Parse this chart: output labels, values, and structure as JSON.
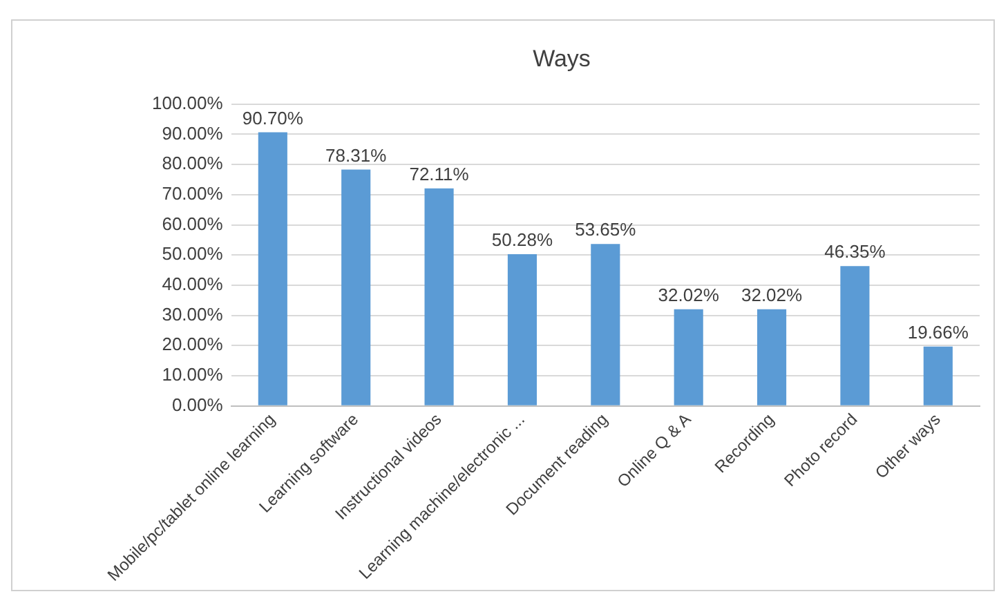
{
  "chart_data": {
    "type": "bar",
    "title": "Ways",
    "categories": [
      "Mobile/pc/tablet online learning",
      "Learning software",
      "Instructional videos",
      "Learning machine/electronic ...",
      "Document reading",
      "Online Q & A",
      "Recording",
      "Photo record",
      "Other ways"
    ],
    "values": [
      90.7,
      78.31,
      72.11,
      50.28,
      53.65,
      32.02,
      32.02,
      46.35,
      19.66
    ],
    "value_labels": [
      "90.70%",
      "78.31%",
      "72.11%",
      "50.28%",
      "53.65%",
      "32.02%",
      "32.02%",
      "46.35%",
      "19.66%"
    ],
    "color": "#5b9bd5",
    "ylim": [
      0,
      100
    ],
    "yticks": [
      {
        "value": 0,
        "label": "0.00%"
      },
      {
        "value": 10,
        "label": "10.00%"
      },
      {
        "value": 20,
        "label": "20.00%"
      },
      {
        "value": 30,
        "label": "30.00%"
      },
      {
        "value": 40,
        "label": "40.00%"
      },
      {
        "value": 50,
        "label": "50.00%"
      },
      {
        "value": 60,
        "label": "60.00%"
      },
      {
        "value": 70,
        "label": "70.00%"
      },
      {
        "value": 80,
        "label": "80.00%"
      },
      {
        "value": 90,
        "label": "90.00%"
      },
      {
        "value": 100,
        "label": "100.00%"
      }
    ],
    "grid": "y"
  }
}
